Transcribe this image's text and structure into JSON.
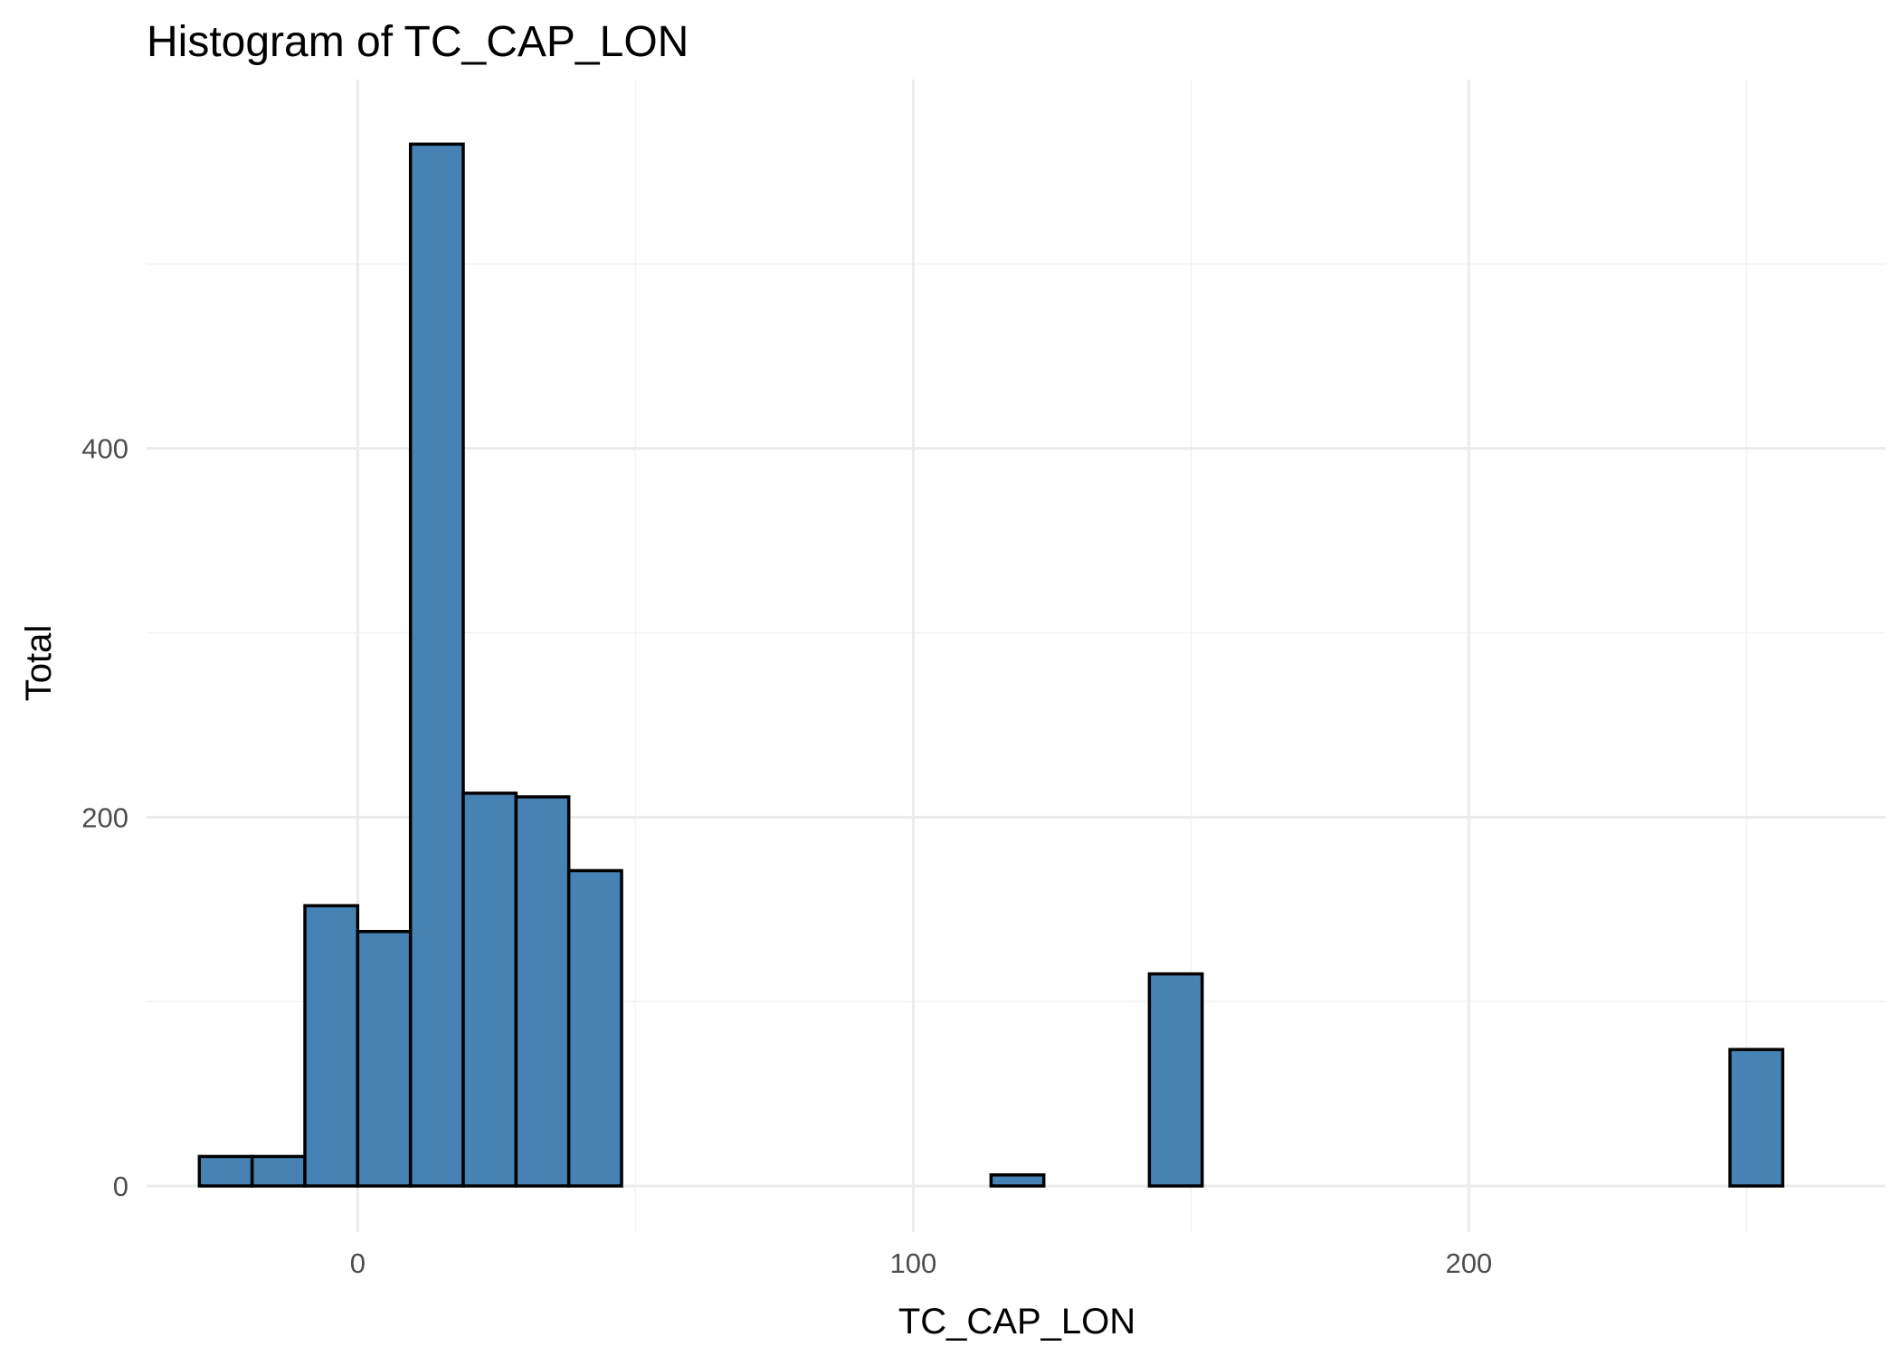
{
  "chart_data": {
    "type": "bar",
    "subtype": "histogram",
    "title": "Histogram of  TC_CAP_LON",
    "xlabel": "TC_CAP_LON",
    "ylabel": "Total",
    "xlim": [
      -38,
      275
    ],
    "ylim": [
      -25,
      600
    ],
    "x_ticks": [
      0,
      100,
      200
    ],
    "x_tick_labels": [
      "0",
      "100",
      "200"
    ],
    "y_ticks": [
      0,
      200,
      400
    ],
    "y_tick_labels": [
      "0",
      "200",
      "400"
    ],
    "x_minor_ticks": [
      50,
      150,
      250
    ],
    "y_minor_ticks": [
      100,
      300,
      500
    ],
    "grid": true,
    "bin_width": 9.5,
    "fill_color": "#4682B4",
    "edge_color": "#000000",
    "bins": [
      {
        "x": -23.75,
        "count": 16
      },
      {
        "x": -14.25,
        "count": 16
      },
      {
        "x": -4.75,
        "count": 152
      },
      {
        "x": 4.75,
        "count": 138
      },
      {
        "x": 14.25,
        "count": 565
      },
      {
        "x": 23.75,
        "count": 213
      },
      {
        "x": 33.25,
        "count": 211
      },
      {
        "x": 42.75,
        "count": 171
      },
      {
        "x": 52.25,
        "count": 0
      },
      {
        "x": 61.75,
        "count": 0
      },
      {
        "x": 71.25,
        "count": 0
      },
      {
        "x": 80.75,
        "count": 0
      },
      {
        "x": 90.25,
        "count": 0
      },
      {
        "x": 99.75,
        "count": 0
      },
      {
        "x": 109.25,
        "count": 0
      },
      {
        "x": 118.75,
        "count": 6
      },
      {
        "x": 128.25,
        "count": 0
      },
      {
        "x": 137.75,
        "count": 0
      },
      {
        "x": 147.25,
        "count": 115
      },
      {
        "x": 156.75,
        "count": 0
      },
      {
        "x": 166.25,
        "count": 0
      },
      {
        "x": 175.75,
        "count": 0
      },
      {
        "x": 185.25,
        "count": 0
      },
      {
        "x": 194.75,
        "count": 0
      },
      {
        "x": 204.25,
        "count": 0
      },
      {
        "x": 213.75,
        "count": 0
      },
      {
        "x": 223.25,
        "count": 0
      },
      {
        "x": 232.75,
        "count": 0
      },
      {
        "x": 242.25,
        "count": 0
      },
      {
        "x": 251.75,
        "count": 74
      }
    ]
  }
}
